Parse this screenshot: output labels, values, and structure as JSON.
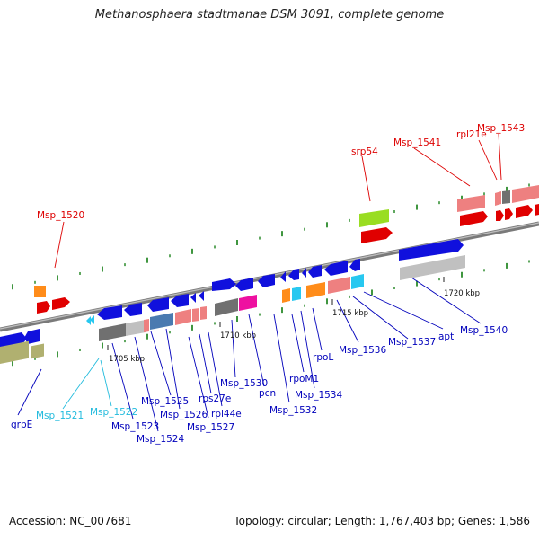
{
  "header": {
    "title": "Methanosphaera stadtmanae DSM 3091, complete genome"
  },
  "footer": {
    "accession": "Accession: NC_007681",
    "summary": "Topology: circular; Length: 1,767,403 bp; Genes: 1,586"
  },
  "colors": {
    "blue": "#1010dd",
    "red": "#e00000",
    "pink": "#ee8080",
    "gray": "#707070",
    "lightgray": "#c0c0c0",
    "steel": "#4a7ab0",
    "orange": "#ff8c1a",
    "cyan": "#28c8f0",
    "magenta": "#ee10a0",
    "lime": "#99dd22",
    "olive": "#b0b070",
    "label_blue": "#0000bb",
    "label_red": "#dd0000",
    "label_cyan": "#22bbdd"
  },
  "axis_ticks": [
    "1705 kbp",
    "1710 kbp",
    "1715 kbp",
    "1720 kbp"
  ],
  "labels": {
    "grpE": "grpE",
    "Msp_1521": "Msp_1521",
    "Msp_1522": "Msp_1522",
    "Msp_1523": "Msp_1523",
    "Msp_1524": "Msp_1524",
    "Msp_1525": "Msp_1525",
    "Msp_1526": "Msp_1526",
    "rps27e": "rps27e",
    "rpl44e": "rpl44e",
    "Msp_1527": "Msp_1527",
    "Msp_1530": "Msp_1530",
    "pcn": "pcn",
    "Msp_1532": "Msp_1532",
    "rpoM1": "rpoM1",
    "Msp_1534": "Msp_1534",
    "rpoL": "rpoL",
    "Msp_1536": "Msp_1536",
    "Msp_1537": "Msp_1537",
    "apt": "apt",
    "Msp_1540": "Msp_1540",
    "Msp_1520": "Msp_1520",
    "srp54": "srp54",
    "Msp_1541": "Msp_1541",
    "rpl21e": "rpl21e",
    "Msp_1543": "Msp_1543"
  }
}
